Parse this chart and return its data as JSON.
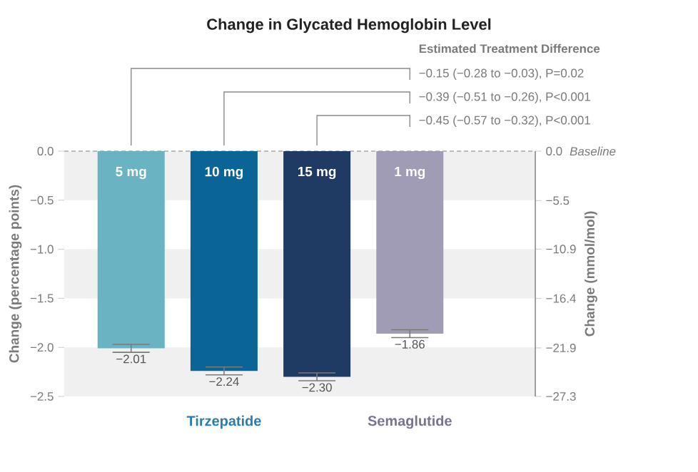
{
  "chart_data": {
    "type": "bar",
    "title": "Change in Glycated Hemoglobin Level",
    "ylabel": "Change (percentage points)",
    "y2label": "Change (mmol/mol)",
    "categories": [
      "5 mg",
      "10 mg",
      "15 mg",
      "1 mg"
    ],
    "values": [
      -2.01,
      -2.24,
      -2.3,
      -1.86
    ],
    "colors": [
      "#6ab3c3",
      "#0a6496",
      "#1f3a63",
      "#a09cb6"
    ],
    "errors": [
      0.04,
      0.04,
      0.04,
      0.04
    ],
    "value_labels": [
      "−2.01",
      "−2.24",
      "−2.30",
      "−1.86"
    ],
    "ylim": [
      -2.5,
      0
    ],
    "yticks": [
      {
        "value": 0,
        "label": "0.0"
      },
      {
        "value": -0.5,
        "label": "−0.5"
      },
      {
        "value": -1,
        "label": "−1.0"
      },
      {
        "value": -1.5,
        "label": "−1.5"
      },
      {
        "value": -2,
        "label": "−2.0"
      },
      {
        "value": -2.5,
        "label": "−2.5"
      }
    ],
    "y2lim": [
      -27.3,
      0
    ],
    "y2ticks": [
      {
        "value": 0,
        "label": "0.0"
      },
      {
        "value": -5.5,
        "label": "−5.5"
      },
      {
        "value": -10.9,
        "label": "−10.9"
      },
      {
        "value": -16.4,
        "label": "−16.4"
      },
      {
        "value": -21.9,
        "label": "−21.9"
      },
      {
        "value": -27.3,
        "label": "−27.3"
      }
    ],
    "bands": [
      {
        "axis": "y",
        "from": 0,
        "to": -0.5,
        "color": "#f0f0f0"
      },
      {
        "axis": "y",
        "from": -1,
        "to": -1.5,
        "color": "#f0f0f0"
      },
      {
        "axis": "y",
        "from": -2,
        "to": -2.5,
        "color": "#f0f0f0"
      }
    ],
    "ref_lines": [
      {
        "axis": "y",
        "value": 0,
        "label": "Baseline",
        "line_style": "dashed",
        "color": "#a8a8a8"
      }
    ],
    "annotations": [
      "Estimated Treatment Difference",
      "−0.15 (−0.28 to −0.03), P=0.02",
      "−0.39 (−0.51 to −0.26), P<0.001",
      "−0.45 (−0.57 to −0.32), P<0.001",
      "Tirzepatide",
      "Semaglutide"
    ]
  }
}
